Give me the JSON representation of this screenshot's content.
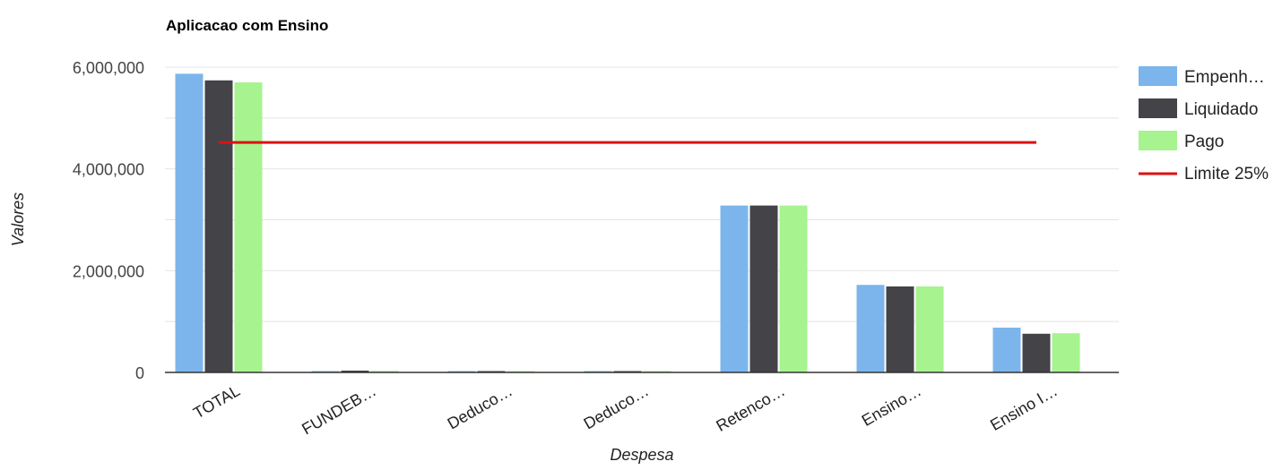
{
  "chart_data": {
    "type": "bar",
    "title": "Aplicacao com Ensino",
    "xlabel": "Despesa",
    "ylabel": "Valores",
    "ylim": [
      0,
      6000000
    ],
    "yticks": [
      0,
      2000000,
      4000000,
      6000000
    ],
    "ytick_labels": [
      "0",
      "2,000,000",
      "4,000,000",
      "6,000,000"
    ],
    "grid": true,
    "legend_position": "right",
    "categories": [
      "TOTAL",
      "FUNDEB…",
      "Deduco…",
      "Deduco…",
      "Retenco…",
      "Ensino…",
      "Ensino I…"
    ],
    "series": [
      {
        "name": "Empenh…",
        "color": "#7cb5ec",
        "values": [
          5870000,
          20000,
          10000,
          8000,
          3280000,
          1720000,
          880000
        ]
      },
      {
        "name": "Liquidado",
        "color": "#434348",
        "values": [
          5740000,
          35000,
          12000,
          10000,
          3280000,
          1690000,
          760000
        ]
      },
      {
        "name": "Pago",
        "color": "#a6f38f",
        "values": [
          5700000,
          30000,
          10000,
          8000,
          3280000,
          1690000,
          770000
        ]
      }
    ],
    "reference_line": {
      "name": "Limite 25%",
      "color": "#dd1111",
      "value": 4520000
    }
  }
}
